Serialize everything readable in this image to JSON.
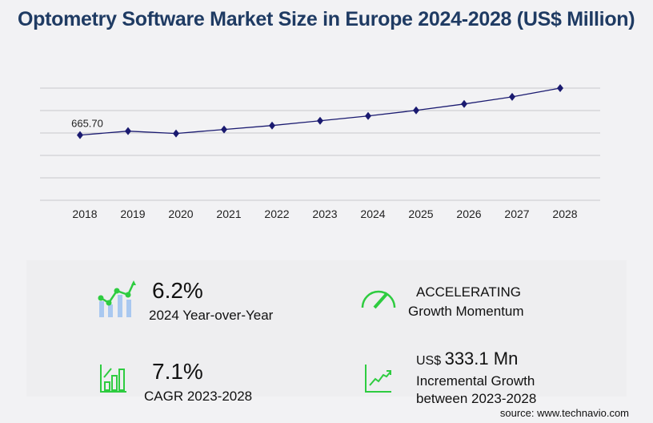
{
  "title": "Optometry Software Market Size in Europe 2024-2028 (US$ Million)",
  "chart_data": {
    "type": "line",
    "title": "Optometry Software Market Size in Europe 2024-2028 (US$ Million)",
    "categories": [
      "2018",
      "2019",
      "2020",
      "2021",
      "2022",
      "2023",
      "2024",
      "2025",
      "2026",
      "2027",
      "2028"
    ],
    "values": [
      665.7,
      706,
      682,
      723,
      763,
      812,
      861,
      918,
      983,
      1056,
      1145
    ],
    "data_labels": [
      {
        "category": "2018",
        "text": "665.70"
      }
    ],
    "ylim": [
      0,
      1145
    ],
    "grid": true,
    "line_color": "#1a1a70",
    "xlabel": "",
    "ylabel": ""
  },
  "stats": {
    "yoy": {
      "value": "6.2%",
      "label": "2024 Year-over-Year",
      "icon": "bar-line-growth-icon"
    },
    "momentum": {
      "value": "ACCELERATING",
      "label": "Growth Momentum",
      "icon": "speedometer-icon"
    },
    "cagr": {
      "value": "7.1%",
      "label": "CAGR 2023-2028",
      "icon": "bar-chart-growth-icon"
    },
    "incremental": {
      "prefix": "US$",
      "value": "333.1 Mn",
      "label1": "Incremental Growth",
      "label2": "between 2023-2028",
      "icon": "trend-up-icon"
    }
  },
  "accent_color": "#2ecc40",
  "source": "source: www.technavio.com"
}
